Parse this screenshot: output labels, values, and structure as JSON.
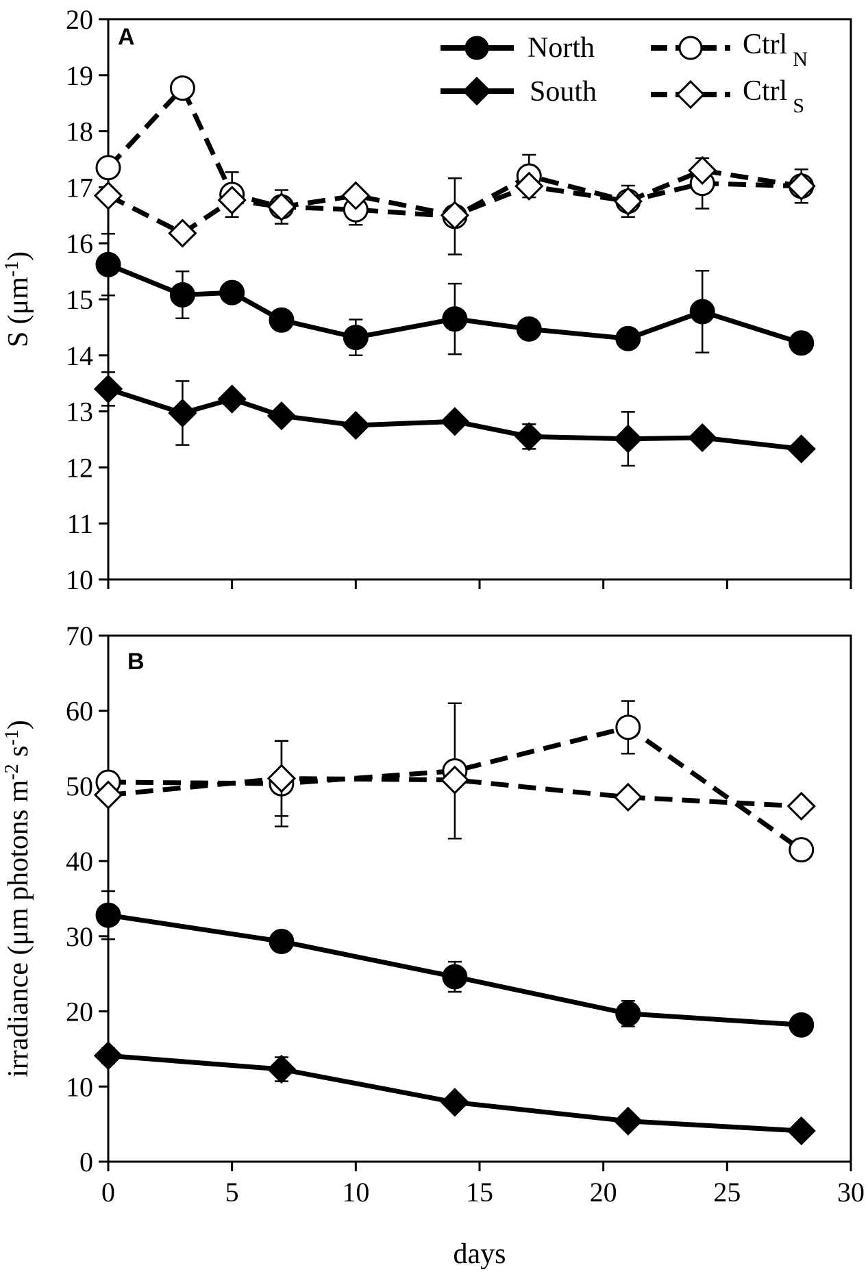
{
  "chart_data": [
    {
      "panel_label": "A",
      "type": "line",
      "ylabel": {
        "main": "S (μm",
        "sup": "-1",
        "end": ")"
      },
      "xlabel": "",
      "xlim": [
        0,
        30
      ],
      "ylim": [
        10,
        20
      ],
      "xticks": [
        "0",
        "5",
        "10",
        "15",
        "20",
        "25",
        "30"
      ],
      "yticks": [
        "10",
        "11",
        "12",
        "13",
        "14",
        "15",
        "16",
        "17",
        "18",
        "19",
        "20"
      ],
      "series": [
        {
          "name": "North",
          "style": "solid",
          "marker": "filled-circle",
          "x": [
            0,
            3,
            5,
            7,
            10,
            14,
            17,
            21,
            24,
            28
          ],
          "values": [
            15.62,
            15.08,
            15.12,
            14.63,
            14.32,
            14.65,
            14.47,
            14.3,
            14.78,
            14.22
          ],
          "error": [
            0.55,
            0.42,
            0.0,
            0.0,
            0.32,
            0.63,
            0.0,
            0.0,
            0.73,
            0.0
          ]
        },
        {
          "name": "South",
          "style": "solid",
          "marker": "filled-diamond",
          "x": [
            0,
            3,
            5,
            7,
            10,
            14,
            17,
            21,
            24,
            28
          ],
          "values": [
            13.4,
            12.97,
            13.22,
            12.92,
            12.75,
            12.82,
            12.55,
            12.51,
            12.53,
            12.33
          ],
          "error": [
            0.3,
            0.57,
            0.0,
            0.0,
            0.0,
            0.0,
            0.22,
            0.48,
            0.0,
            0.0
          ]
        },
        {
          "name": "Ctrl N",
          "style": "dashed",
          "marker": "open-circle",
          "x": [
            0,
            3,
            5,
            7,
            10,
            14,
            17,
            21,
            24,
            28
          ],
          "values": [
            17.35,
            18.77,
            16.87,
            16.65,
            16.6,
            16.48,
            17.2,
            16.75,
            17.07,
            17.02
          ],
          "error": [
            0.0,
            0.0,
            0.4,
            0.3,
            0.27,
            0.68,
            0.38,
            0.28,
            0.45,
            0.3
          ]
        },
        {
          "name": "Ctrl S",
          "style": "dashed",
          "marker": "open-diamond",
          "x": [
            0,
            3,
            5,
            7,
            10,
            14,
            17,
            21,
            24,
            28
          ],
          "values": [
            16.85,
            16.18,
            16.77,
            16.65,
            16.85,
            16.5,
            17.02,
            16.75,
            17.3,
            17.02
          ],
          "error": [
            0.0,
            0.0,
            0.0,
            0.0,
            0.0,
            0.0,
            0.0,
            0.0,
            0.0,
            0.0
          ]
        }
      ]
    },
    {
      "panel_label": "B",
      "type": "line",
      "ylabel": {
        "main": "irradiance (μm photons m",
        "sup1": "-2",
        "mid": " s",
        "sup2": "-1",
        "end": ")"
      },
      "xlabel": "days",
      "xlim": [
        0,
        30
      ],
      "ylim": [
        0,
        70
      ],
      "xticks": [
        "0",
        "5",
        "10",
        "15",
        "20",
        "25",
        "30"
      ],
      "yticks": [
        "0",
        "10",
        "20",
        "30",
        "40",
        "50",
        "60",
        "70"
      ],
      "series": [
        {
          "name": "North",
          "style": "solid",
          "marker": "filled-circle",
          "x": [
            0,
            7,
            14,
            21,
            28
          ],
          "values": [
            32.8,
            29.3,
            24.6,
            19.7,
            18.2
          ],
          "error": [
            3.2,
            0.0,
            2.0,
            1.7,
            0.0
          ]
        },
        {
          "name": "South",
          "style": "solid",
          "marker": "filled-diamond",
          "x": [
            0,
            7,
            14,
            21,
            28
          ],
          "values": [
            14.1,
            12.3,
            7.9,
            5.4,
            4.1
          ],
          "error": [
            1.0,
            1.6,
            0.0,
            0.0,
            0.0
          ]
        },
        {
          "name": "Ctrl N",
          "style": "dashed",
          "marker": "open-circle",
          "x": [
            0,
            7,
            14,
            21,
            28
          ],
          "values": [
            50.5,
            50.3,
            52.0,
            57.8,
            41.5
          ],
          "error": [
            0.0,
            5.7,
            9.0,
            3.5,
            0.0
          ]
        },
        {
          "name": "Ctrl S",
          "style": "dashed",
          "marker": "open-diamond",
          "x": [
            0,
            7,
            14,
            21,
            28
          ],
          "values": [
            48.8,
            51.0,
            50.8,
            48.5,
            47.3
          ],
          "error": [
            0.0,
            5.0,
            0.0,
            0.0,
            0.0
          ]
        }
      ]
    }
  ],
  "legend": {
    "north": "North",
    "south": "South",
    "ctrl_n": {
      "main": "Ctrl",
      "sub": "N"
    },
    "ctrl_s": {
      "main": "Ctrl",
      "sub": "S"
    }
  }
}
